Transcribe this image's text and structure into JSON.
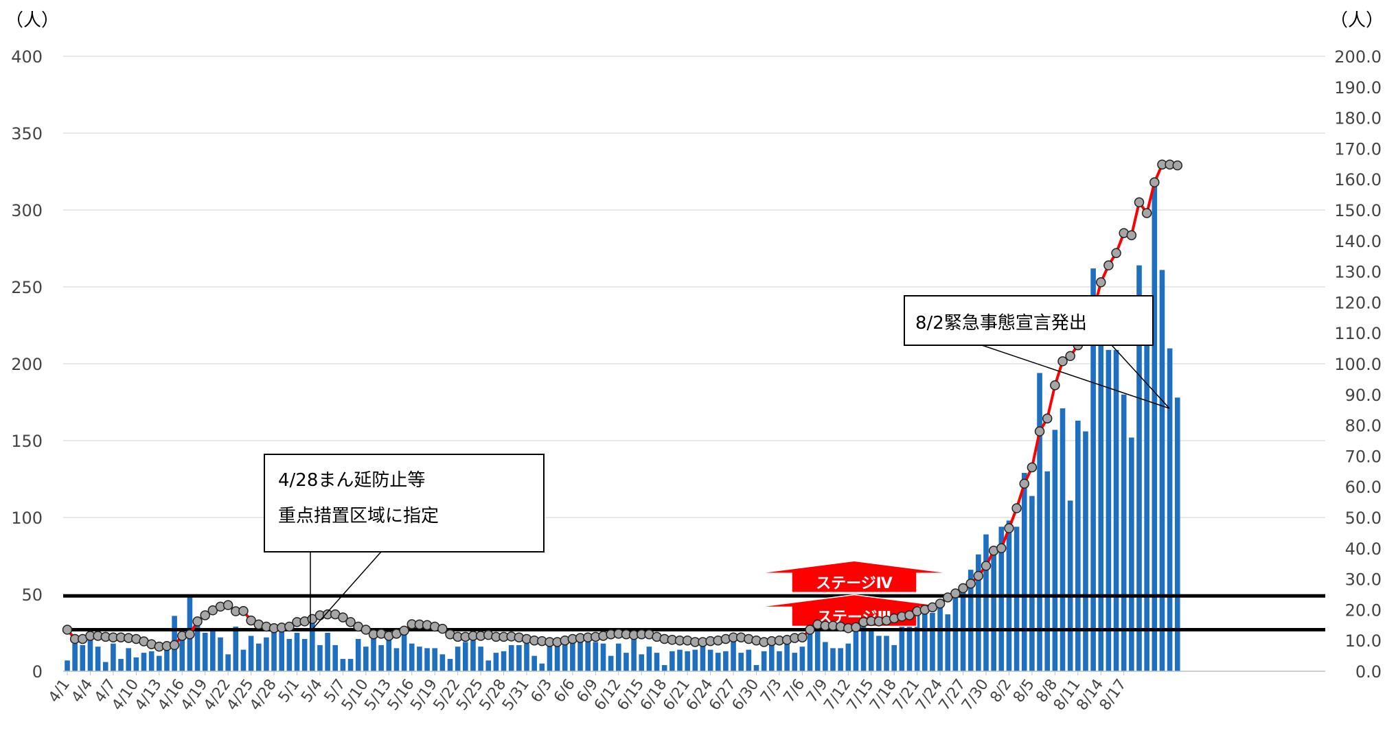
{
  "chart_data": {
    "type": "bar",
    "y_unit_left": "（人）",
    "y_unit_right": "（人）",
    "ylim_left": [
      0,
      400
    ],
    "ylim_right": [
      0,
      200
    ],
    "yticks_left": [
      "0",
      "50",
      "100",
      "150",
      "200",
      "250",
      "300",
      "350",
      "400"
    ],
    "yticks_right": [
      "0.0",
      "10.0",
      "20.0",
      "30.0",
      "40.0",
      "50.0",
      "60.0",
      "70.0",
      "80.0",
      "90.0",
      "100.0",
      "110.0",
      "120.0",
      "130.0",
      "140.0",
      "150.0",
      "160.0",
      "170.0",
      "180.0",
      "190.0",
      "200.0"
    ],
    "grid": true,
    "start_date": "4/1",
    "x_tick_labels": [
      "4/1",
      "4/4",
      "4/7",
      "4/10",
      "4/13",
      "4/16",
      "4/19",
      "4/22",
      "4/25",
      "4/28",
      "5/1",
      "5/4",
      "5/7",
      "5/10",
      "5/13",
      "5/16",
      "5/19",
      "5/22",
      "5/25",
      "5/28",
      "5/31",
      "6/3",
      "6/6",
      "6/9",
      "6/12",
      "6/15",
      "6/18",
      "6/21",
      "6/24",
      "6/27",
      "6/30",
      "7/3",
      "7/6",
      "7/9",
      "7/12",
      "7/15",
      "7/18",
      "7/21",
      "7/24",
      "7/27",
      "7/30",
      "8/2",
      "8/5",
      "8/8",
      "8/11",
      "8/14",
      "8/17"
    ],
    "bar_values": [
      7,
      18,
      17,
      21,
      16,
      6,
      18,
      8,
      15,
      9,
      12,
      13,
      10,
      15,
      36,
      22,
      48,
      31,
      25,
      26,
      22,
      11,
      29,
      14,
      23,
      18,
      22,
      27,
      30,
      21,
      25,
      21,
      36,
      17,
      25,
      17,
      8,
      8,
      21,
      16,
      22,
      17,
      22,
      15,
      28,
      18,
      16,
      15,
      15,
      11,
      8,
      16,
      19,
      20,
      16,
      7,
      12,
      13,
      17,
      17,
      18,
      10,
      5,
      16,
      17,
      20,
      21,
      19,
      19,
      19,
      18,
      10,
      18,
      12,
      23,
      11,
      16,
      12,
      4,
      13,
      14,
      13,
      14,
      17,
      14,
      12,
      13,
      20,
      12,
      14,
      4,
      13,
      17,
      13,
      18,
      12,
      16,
      33,
      33,
      19,
      15,
      15,
      18,
      30,
      30,
      28,
      23,
      23,
      17,
      34,
      35,
      38,
      38,
      38,
      42,
      37,
      52,
      52,
      66,
      76,
      89,
      81,
      94,
      98,
      94,
      129,
      114,
      194,
      130,
      157,
      171,
      111,
      163,
      156,
      262,
      225,
      209,
      209,
      180,
      152,
      264,
      228,
      316,
      261,
      210,
      178
    ],
    "ma_values": [
      13.5,
      10.5,
      10.5,
      11.5,
      11.5,
      11.2,
      11.0,
      11.0,
      10.8,
      10.5,
      9.7,
      8.8,
      8.0,
      8.2,
      8.5,
      11.5,
      12.0,
      16.2,
      18.2,
      19.8,
      21.0,
      21.5,
      19.5,
      19.6,
      16.5,
      15.2,
      14.5,
      14.0,
      14.2,
      14.5,
      16.0,
      16.2,
      17.0,
      18.2,
      18.5,
      18.5,
      17.5,
      16.0,
      14.5,
      13.5,
      12.0,
      12.2,
      11.5,
      12.2,
      13.2,
      15.3,
      15.2,
      15.0,
      14.5,
      13.8,
      12.0,
      11.2,
      11.2,
      11.5,
      11.5,
      11.8,
      11.2,
      11.2,
      11.3,
      11.0,
      10.5,
      10.0,
      9.8,
      9.5,
      9.5,
      10.0,
      10.5,
      10.8,
      11.0,
      11.2,
      11.5,
      12.0,
      12.2,
      12.0,
      11.8,
      12.0,
      12.0,
      11.2,
      10.5,
      10.2,
      10.0,
      10.0,
      9.5,
      9.5,
      9.8,
      10.0,
      10.5,
      11.0,
      11.0,
      10.5,
      10.0,
      9.5,
      9.8,
      10.0,
      10.2,
      10.8,
      11.0,
      13.5,
      15.2,
      14.8,
      14.8,
      14.5,
      14.0,
      14.3,
      16.0,
      16.3,
      16.2,
      16.5,
      17.2,
      17.8,
      18.2,
      19.5,
      20.0,
      20.8,
      22.0,
      24.0,
      25.3,
      27.0,
      28.5,
      31.0,
      34.3,
      39.2,
      40.0,
      46.5,
      53.0,
      61.0,
      66.3,
      78.0,
      82.2,
      93.0,
      100.8,
      102.5,
      106.0,
      110.0,
      117.0,
      126.5,
      132.0,
      136.0,
      142.5,
      141.8,
      152.5,
      149.0,
      159.0,
      164.8,
      164.8,
      164.5
    ],
    "ref_lines_left": [
      49,
      27
    ],
    "stage_labels": [
      "ステージⅣ",
      "ステージⅢ"
    ],
    "annotations": [
      {
        "lines": [
          "4/28まん延防止等",
          "重点措置区域に指定"
        ]
      },
      {
        "lines": [
          "8/2緊急事態宣言発出"
        ]
      }
    ],
    "colors": {
      "bar": "#1f6fc0",
      "ma_line": "#ff0000",
      "ma_marker": "#a6a6a6",
      "grid": "#d9d9d9",
      "ref_line": "#000000",
      "stage_arrow": "#ff0000"
    }
  }
}
